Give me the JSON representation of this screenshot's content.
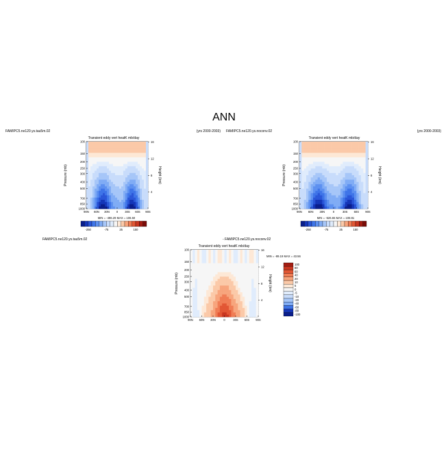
{
  "page": {
    "title": "ANN"
  },
  "colors": {
    "blues": [
      "#0a1e8c",
      "#1536b8",
      "#2a56d8",
      "#3e74e8",
      "#5d90f0",
      "#80acf5",
      "#a6c6f8",
      "#c8dcfb",
      "#e0ecfc"
    ],
    "neutral": "#f6f6f6",
    "reds": [
      "#fde8d6",
      "#fbc9a8",
      "#f7a57d",
      "#f07d55",
      "#e25634",
      "#c93620",
      "#a31d12",
      "#7a0c08"
    ]
  },
  "chart_data": [
    {
      "type": "heatmap",
      "id": "panel-test",
      "title": "Transient eddy vert heatK mb/day",
      "case_name": "FAMIPC5.ne120.ys.tau5m.02",
      "years": "(yrs 2000-2003)",
      "xlabel": "",
      "ylabel": "Pressure (mb)",
      "ylabel_right": "Height (km)",
      "x_ticks": [
        "90N",
        "60N",
        "30N",
        "0",
        "30S",
        "60S",
        "90S"
      ],
      "xlim": [
        90,
        -90
      ],
      "y_ticks": [
        "100",
        "150",
        "200",
        "250",
        "300",
        "400",
        "500",
        "700",
        "850",
        "1000"
      ],
      "ylim": [
        1000,
        100
      ],
      "y_right_ticks": [
        "4",
        "8",
        "12",
        "16"
      ],
      "min_max": "MIN = -496.29   MAX = 106.50",
      "colorbar_labels": [
        "-250",
        "-75",
        "25",
        "150"
      ]
    },
    {
      "type": "heatmap",
      "id": "panel-control",
      "title": "Transient eddy vert heatK mb/day",
      "case_name": "FAMIPC5.ne120.ys.noconv.02",
      "years": "(yrs 2000-2003)",
      "xlabel": "",
      "ylabel": "Pressure (mb)",
      "ylabel_right": "Height (km)",
      "x_ticks": [
        "90N",
        "60N",
        "30N",
        "0",
        "30S",
        "60S",
        "90S"
      ],
      "xlim": [
        90,
        -90
      ],
      "y_ticks": [
        "100",
        "150",
        "200",
        "250",
        "300",
        "400",
        "500",
        "700",
        "850",
        "1000"
      ],
      "ylim": [
        1000,
        100
      ],
      "y_right_ticks": [
        "4",
        "8",
        "12",
        "16"
      ],
      "min_max": "MIN = -526.65   MAX = 108.81",
      "colorbar_labels": [
        "-250",
        "-75",
        "25",
        "150"
      ]
    },
    {
      "type": "heatmap",
      "id": "panel-diff",
      "title": "Transient eddy vert heatK mb/day",
      "case_name": "FAMIPC5.ne120.ys.tau5m.02",
      "minus_label": "- FAMIPC5.ne120.ys.noconv.02",
      "xlabel": "",
      "ylabel": "Pressure (mb)",
      "ylabel_right": "Height (km)",
      "x_ticks": [
        "90N",
        "60N",
        "30N",
        "0",
        "30S",
        "60S",
        "90S"
      ],
      "xlim": [
        90,
        -90
      ],
      "y_ticks": [
        "100",
        "150",
        "200",
        "250",
        "300",
        "400",
        "500",
        "700",
        "850",
        "1000"
      ],
      "ylim": [
        1000,
        100
      ],
      "y_right_ticks": [
        "4",
        "8",
        "12",
        "16"
      ],
      "min_max": "MIN = -89.19   MAX = 43.56",
      "colorbar_labels": [
        "100",
        "80",
        "60",
        "40",
        "20",
        "10",
        "5",
        "0",
        "-5",
        "-10",
        "-20",
        "-40",
        "-60",
        "-80",
        "-100"
      ],
      "colorbar_colors": [
        "#a31d12",
        "#c93620",
        "#e25634",
        "#f07d55",
        "#f7a57d",
        "#fbc9a8",
        "#fde8d6",
        "#f6f6f6",
        "#e0ecfc",
        "#c8dcfb",
        "#a6c6f8",
        "#80acf5",
        "#3e74e8",
        "#1536b8",
        "#0a1e8c"
      ]
    }
  ]
}
